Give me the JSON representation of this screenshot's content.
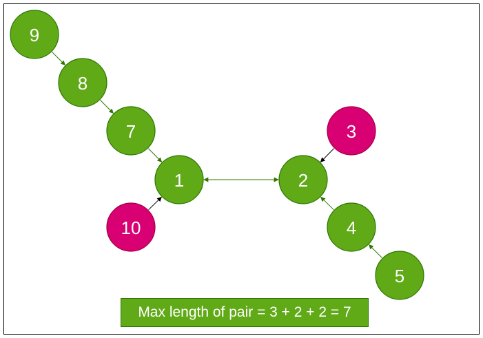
{
  "colors": {
    "green_fill": "#60a917",
    "green_stroke": "#2d7600",
    "pink_fill": "#d80073",
    "pink_stroke": "#a50040",
    "edge_green": "#2d7600",
    "edge_black": "#000000"
  },
  "nodes": [
    {
      "id": "9",
      "label": "9",
      "color": "green"
    },
    {
      "id": "8",
      "label": "8",
      "color": "green"
    },
    {
      "id": "7",
      "label": "7",
      "color": "green"
    },
    {
      "id": "1",
      "label": "1",
      "color": "green"
    },
    {
      "id": "10",
      "label": "10",
      "color": "pink"
    },
    {
      "id": "2",
      "label": "2",
      "color": "green"
    },
    {
      "id": "3",
      "label": "3",
      "color": "pink"
    },
    {
      "id": "4",
      "label": "4",
      "color": "green"
    },
    {
      "id": "5",
      "label": "5",
      "color": "green"
    }
  ],
  "edges": [
    {
      "from": "9",
      "to": "8",
      "color": "green",
      "direction": "forward"
    },
    {
      "from": "8",
      "to": "7",
      "color": "green",
      "direction": "forward"
    },
    {
      "from": "7",
      "to": "1",
      "color": "green",
      "direction": "forward"
    },
    {
      "from": "10",
      "to": "1",
      "color": "black",
      "direction": "forward"
    },
    {
      "from": "1",
      "to": "2",
      "color": "green",
      "direction": "both"
    },
    {
      "from": "3",
      "to": "2",
      "color": "black",
      "direction": "forward"
    },
    {
      "from": "4",
      "to": "2",
      "color": "green",
      "direction": "forward"
    },
    {
      "from": "5",
      "to": "4",
      "color": "green",
      "direction": "forward"
    }
  ],
  "caption": "Max length of pair = 3 + 2 + 2 = 7"
}
